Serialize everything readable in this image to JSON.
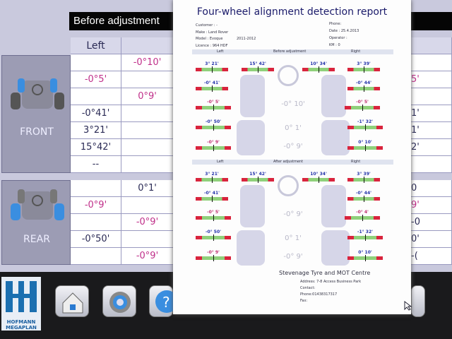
{
  "app": {
    "header_title": "Before adjustment",
    "column_left": "Left",
    "front_label": "FRONT",
    "rear_label": "REAR",
    "brand": "HOFMANN MEGAPLAN",
    "front_rows": [
      [
        "",
        "-0°10'"
      ],
      [
        "-0°5'",
        ""
      ],
      [
        "",
        "0°9'"
      ],
      [
        "-0°41'",
        ""
      ],
      [
        "3°21'",
        ""
      ],
      [
        "15°42'",
        ""
      ],
      [
        "--",
        ""
      ]
    ],
    "front_right_partial": [
      "",
      "5'",
      "",
      "1'",
      "1'",
      "2'",
      ""
    ],
    "rear_rows": [
      [
        "",
        "0°1'"
      ],
      [
        "-0°9'",
        ""
      ],
      [
        "",
        "-0°9'"
      ],
      [
        "-0°50'",
        ""
      ],
      [
        "",
        "-0°9'"
      ]
    ],
    "rear_right_partial": [
      "0",
      "9'",
      "-0",
      "0'",
      "-("
    ],
    "magenta_cells": {
      "front": [
        [
          0,
          1
        ],
        [
          1,
          0
        ],
        [
          2,
          1
        ]
      ],
      "rear": [
        [
          1,
          0
        ],
        [
          2,
          1
        ],
        [
          4,
          1
        ]
      ]
    },
    "bottom_buttons": [
      {
        "icon": "home-icon"
      },
      {
        "icon": "settings-gear-icon"
      },
      {
        "icon": "help-icon"
      }
    ]
  },
  "report": {
    "title": "Four-wheel alignment detection report",
    "customer": "Customer : -",
    "make": "Make : Land Rover",
    "model": "Model : Evoque",
    "years": "2011-2012",
    "licence": "Licence : 964 HDF",
    "phone": "Phone:",
    "date": "Date : 25.4.2013",
    "operator": "Operator :",
    "km": "KM : 0",
    "before": {
      "left": "Left",
      "title": "Before adjustment",
      "right": "Right",
      "values": [
        "3° 21'",
        "15° 42'",
        "10° 34'",
        "3° 39'",
        "-0° 41'",
        "-0° 44'",
        "-0° 5'",
        "-0° 5'",
        "-0° 50'",
        "-1° 32'",
        "-0° 9'",
        "0° 10'"
      ],
      "center": [
        "-0° 10'",
        "0° 1'",
        "-0° 9'"
      ]
    },
    "after": {
      "left": "Left",
      "title": "After adjustment",
      "right": "Right",
      "values": [
        "3° 21'",
        "15° 42'",
        "10° 34'",
        "3° 39'",
        "-0° 41'",
        "-0° 44'",
        "-0° 5'",
        "-0° 4'",
        "-0° 50'",
        "-1° 32'",
        "-0° 9'",
        "0° 10'"
      ],
      "center": [
        "-0° 9'",
        "0° 1'",
        "-0° 9'"
      ]
    },
    "shop": "Stevenage Tyre and MOT Centre",
    "address": "Address: 7-8 Access Business Park",
    "contact": "Contact:",
    "shop_phone": "Phone:01438317317",
    "fax": "Fax:"
  },
  "colors": {
    "magenta": "#c0308a",
    "bar_red": "#d9243d",
    "bar_green": "#8fd07a",
    "title_blue": "#1a1a6a"
  }
}
